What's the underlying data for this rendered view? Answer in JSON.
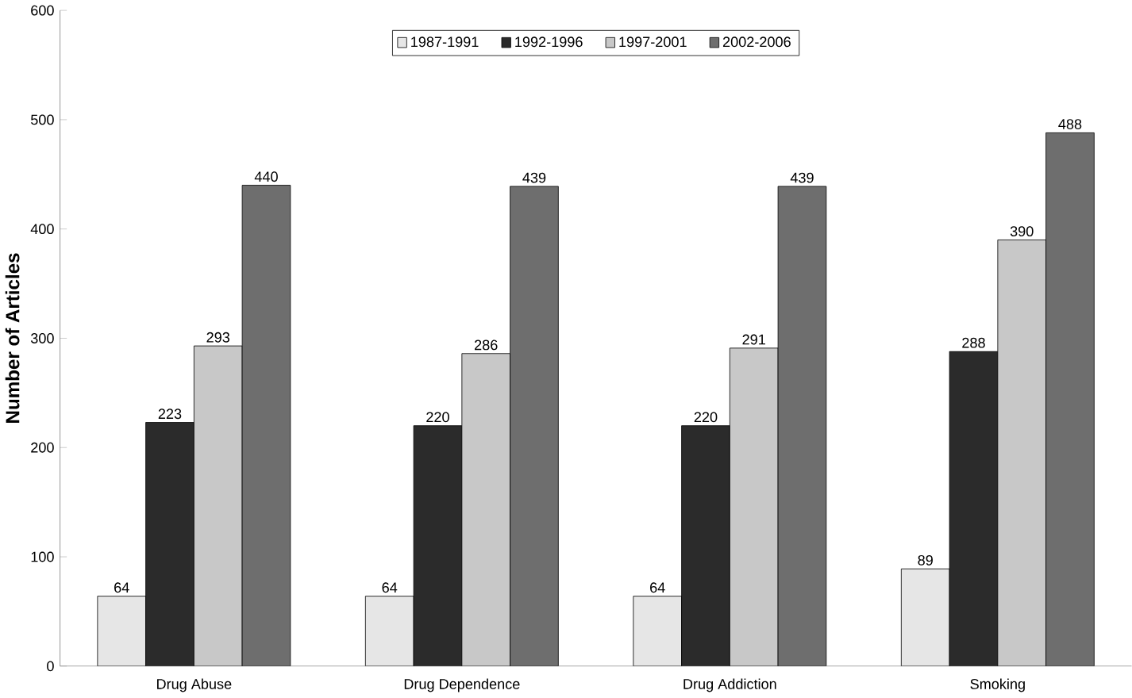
{
  "chart_data": {
    "type": "bar",
    "ylabel": "Number of Articles",
    "categories": [
      "Drug Abuse",
      "Drug Dependence",
      "Drug Addiction",
      "Smoking"
    ],
    "series": [
      {
        "name": "1987-1991",
        "color": "#e6e6e6",
        "values": [
          64,
          64,
          64,
          89
        ]
      },
      {
        "name": "1992-1996",
        "color": "#2b2b2b",
        "values": [
          223,
          220,
          220,
          288
        ]
      },
      {
        "name": "1997-2001",
        "color": "#c8c8c8",
        "values": [
          293,
          286,
          291,
          390
        ]
      },
      {
        "name": "2002-2006",
        "color": "#6e6e6e",
        "values": [
          440,
          439,
          439,
          488
        ]
      }
    ],
    "ylim": [
      0,
      600
    ],
    "yticks": [
      0,
      100,
      200,
      300,
      400,
      500,
      600
    ],
    "data_labels": true,
    "grid": false,
    "legend": "top"
  }
}
